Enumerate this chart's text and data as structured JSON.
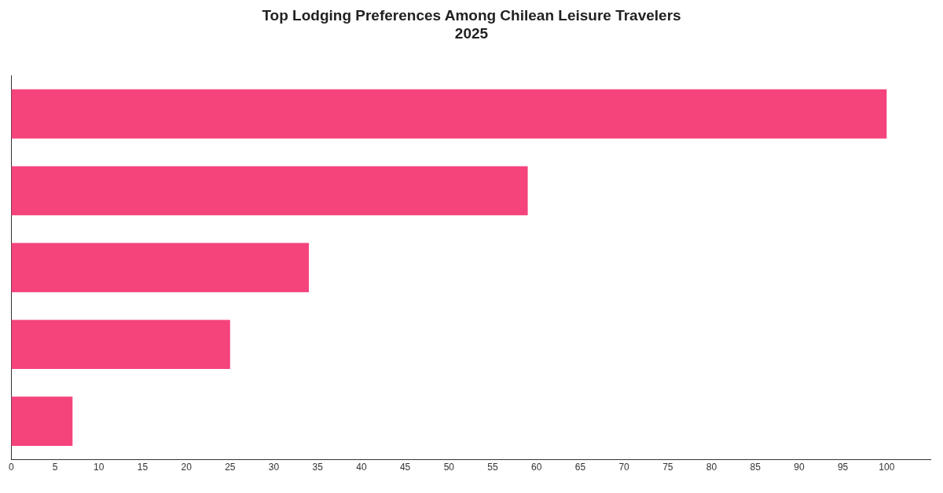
{
  "chart_data": {
    "type": "bar",
    "orientation": "horizontal",
    "title": "Top Lodging Preferences Among Chilean Leisure Travelers\n2025",
    "categories": [
      null,
      null,
      null,
      null,
      null
    ],
    "values": [
      100,
      59,
      34,
      25,
      7
    ],
    "color": "#f5437c",
    "xlim": [
      0,
      105
    ],
    "xticks": [
      0,
      5,
      10,
      15,
      20,
      25,
      30,
      35,
      40,
      45,
      50,
      55,
      60,
      65,
      70,
      75,
      80,
      85,
      90,
      95,
      100
    ],
    "grid": false,
    "legend": false
  }
}
